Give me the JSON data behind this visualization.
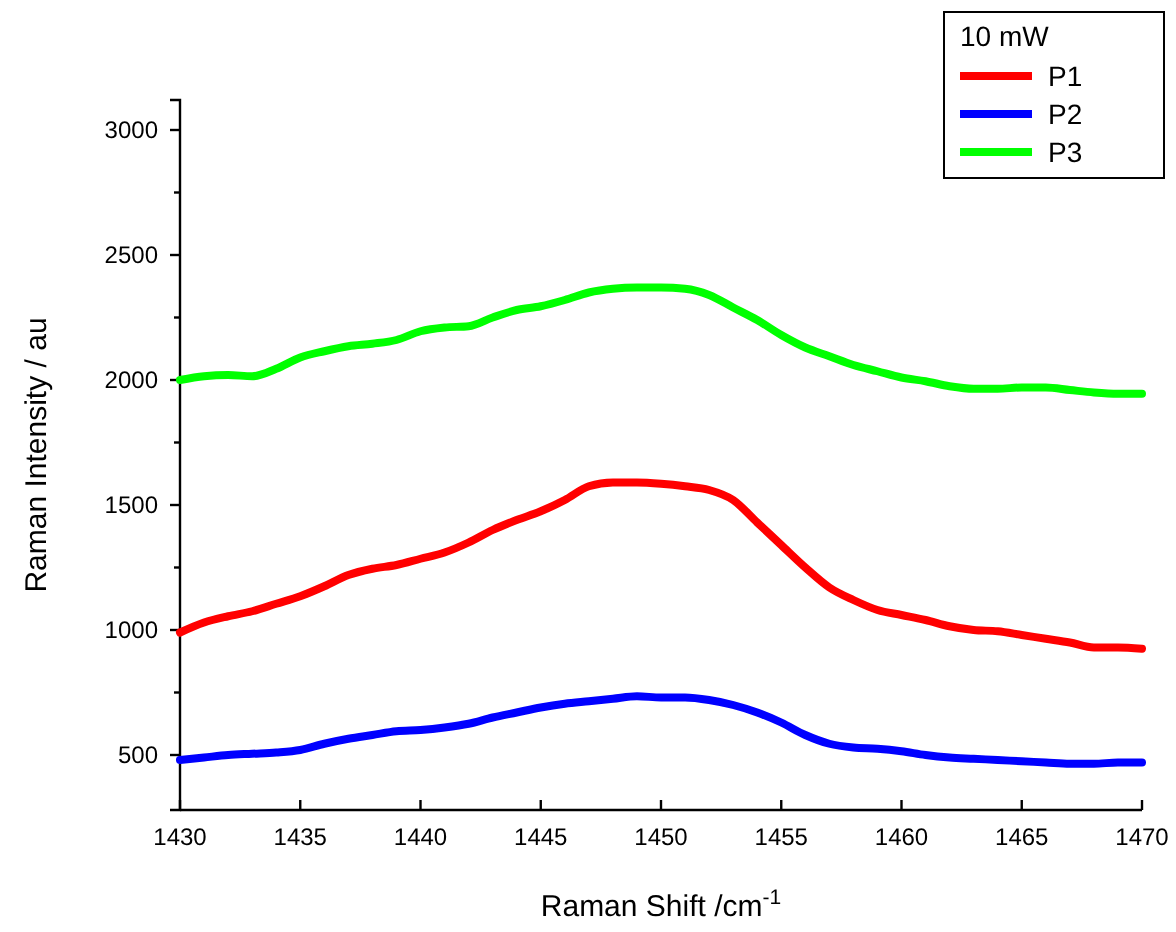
{
  "chart_data": {
    "type": "line",
    "xlabel": "Raman Shift /cm$^{-1}$",
    "ylabel": "Raman Intensity / au",
    "legend_title": "10 mW",
    "legend": "top right",
    "grid": false,
    "marker": "none",
    "line_style": "solid",
    "x": [
      1430,
      1431,
      1432,
      1433,
      1434,
      1435,
      1436,
      1437,
      1438,
      1439,
      1440,
      1441,
      1442,
      1443,
      1444,
      1445,
      1446,
      1447,
      1448,
      1449,
      1450,
      1451,
      1452,
      1453,
      1454,
      1455,
      1456,
      1457,
      1458,
      1459,
      1460,
      1461,
      1462,
      1463,
      1464,
      1465,
      1466,
      1467,
      1468,
      1469,
      1470
    ],
    "xlim": [
      1430,
      1470
    ],
    "xticks": [
      1430,
      1435,
      1440,
      1445,
      1450,
      1455,
      1460,
      1465,
      1470
    ],
    "ylim": [
      280,
      3120
    ],
    "yticks": [
      500,
      {
        "value": 750,
        "label": null
      },
      1000,
      {
        "value": 1250,
        "label": null
      },
      1500,
      {
        "value": 1750,
        "label": null
      },
      2000,
      {
        "value": 2250,
        "label": null
      },
      2500,
      {
        "value": 2750,
        "label": null
      },
      3000
    ],
    "series": [
      {
        "name": "P1",
        "color": "#ff0000",
        "values": [
          990,
          1030,
          1055,
          1075,
          1105,
          1135,
          1175,
          1220,
          1245,
          1260,
          1285,
          1310,
          1350,
          1400,
          1440,
          1475,
          1520,
          1575,
          1590,
          1590,
          1585,
          1575,
          1560,
          1520,
          1430,
          1340,
          1250,
          1170,
          1120,
          1080,
          1060,
          1040,
          1015,
          1000,
          995,
          980,
          965,
          950,
          930,
          930,
          925
        ]
      },
      {
        "name": "P2",
        "color": "#0000ff",
        "values": [
          480,
          490,
          500,
          505,
          510,
          520,
          545,
          565,
          580,
          595,
          600,
          610,
          625,
          650,
          670,
          690,
          705,
          715,
          725,
          735,
          730,
          730,
          720,
          700,
          670,
          630,
          580,
          545,
          530,
          525,
          515,
          500,
          490,
          485,
          480,
          475,
          470,
          465,
          465,
          470,
          470
        ]
      },
      {
        "name": "P3",
        "color": "#00ff00",
        "values": [
          2000,
          2015,
          2020,
          2015,
          2045,
          2090,
          2115,
          2135,
          2145,
          2160,
          2195,
          2210,
          2215,
          2250,
          2280,
          2295,
          2320,
          2350,
          2365,
          2370,
          2370,
          2365,
          2340,
          2290,
          2240,
          2180,
          2130,
          2095,
          2060,
          2035,
          2010,
          1995,
          1975,
          1965,
          1965,
          1970,
          1970,
          1960,
          1950,
          1945,
          1945
        ]
      }
    ]
  }
}
